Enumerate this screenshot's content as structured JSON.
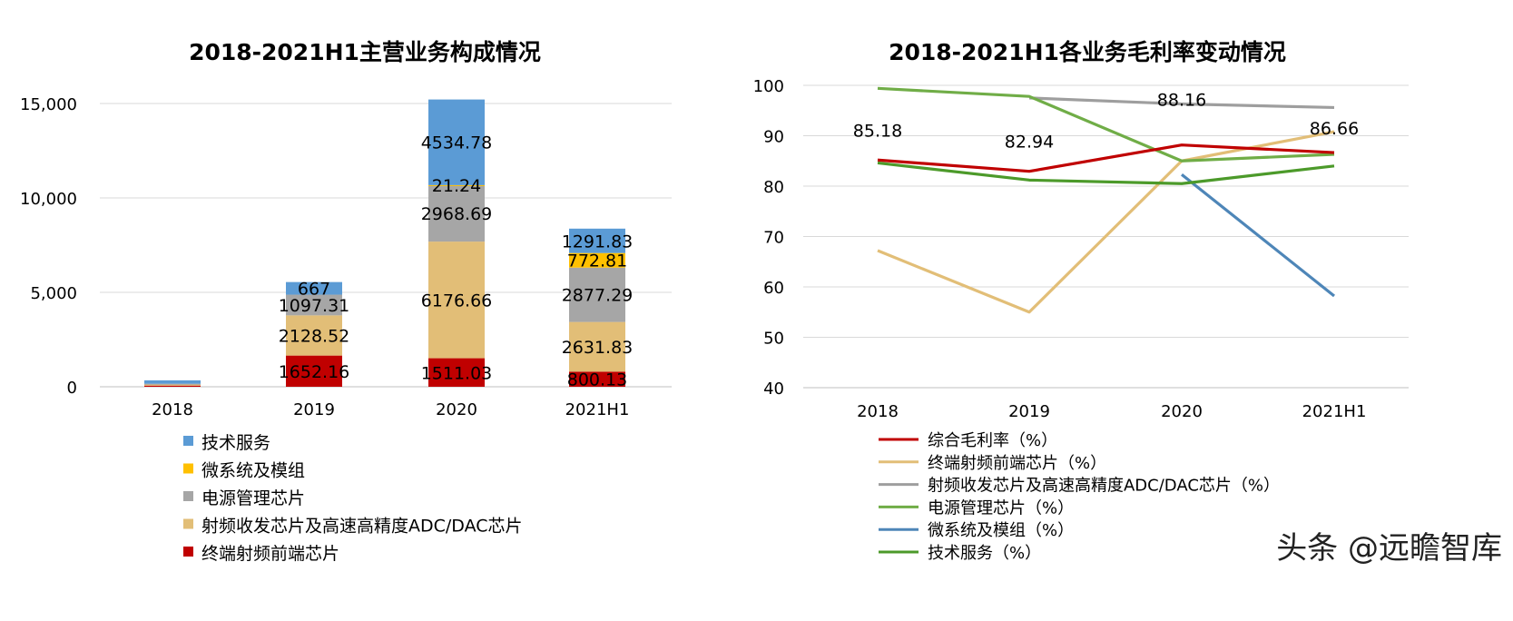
{
  "chart_data": [
    {
      "type": "stacked-bar",
      "title": "2018-2021H1主营业务构成情况",
      "categories": [
        "2018",
        "2019",
        "2020",
        "2021H1"
      ],
      "ylim": [
        0,
        15000
      ],
      "yticks": [
        0,
        5000,
        10000,
        15000
      ],
      "ytick_labels": [
        "0",
        "5,000",
        "10,000",
        "15,000"
      ],
      "grid": true,
      "legend_position": "bottom",
      "series": [
        {
          "name": "终端射频前端芯片",
          "color": "#c00000",
          "values": [
            60,
            1652.16,
            1511.03,
            800.13
          ],
          "labels": [
            null,
            "1652.16",
            "1511.03",
            "800.13"
          ]
        },
        {
          "name": "射频收发芯片及高速高精度ADC/DAC芯片",
          "color": "#e2be77",
          "values": [
            80,
            2128.52,
            6176.66,
            2631.83
          ],
          "labels": [
            null,
            "2128.52",
            "6176.66",
            "2631.83"
          ]
        },
        {
          "name": "电源管理芯片",
          "color": "#a6a6a6",
          "values": [
            20,
            1097.31,
            2968.69,
            2877.29
          ],
          "labels": [
            null,
            "1097.31",
            "2968.69",
            "2877.29"
          ]
        },
        {
          "name": "微系统及模组",
          "color": "#ffc000",
          "values": [
            0,
            0,
            21.24,
            772.81
          ],
          "labels": [
            null,
            null,
            "21.24",
            "772.81"
          ]
        },
        {
          "name": "技术服务",
          "color": "#5b9bd5",
          "values": [
            180,
            667,
            4534.78,
            1291.83
          ],
          "labels": [
            null,
            "667",
            "4534.78",
            "1291.83"
          ]
        }
      ],
      "legend_order": [
        "技术服务",
        "微系统及模组",
        "电源管理芯片",
        "射频收发芯片及高速高精度ADC/DAC芯片",
        "终端射频前端芯片"
      ]
    },
    {
      "type": "line",
      "title": "2018-2021H1各业务毛利率变动情况",
      "categories": [
        "2018",
        "2019",
        "2020",
        "2021H1"
      ],
      "ylim": [
        40,
        100
      ],
      "yticks": [
        40,
        50,
        60,
        70,
        80,
        90,
        100
      ],
      "grid": true,
      "legend_position": "bottom",
      "series": [
        {
          "name": "综合毛利率（%）",
          "color": "#c00000",
          "values": [
            85.18,
            82.94,
            88.16,
            86.66
          ],
          "labels": [
            "85.18",
            "82.94",
            "88.16",
            "86.66"
          ]
        },
        {
          "name": "终端射频前端芯片（%）",
          "color": "#e2be77",
          "values": [
            67.2,
            55.0,
            85.0,
            90.8
          ]
        },
        {
          "name": "射频收发芯片及高速高精度ADC/DAC芯片（%）",
          "color": "#9e9e9e",
          "values": [
            null,
            97.5,
            96.3,
            95.6
          ]
        },
        {
          "name": "电源管理芯片（%）",
          "color": "#70ad47",
          "values": [
            99.4,
            97.8,
            85.0,
            86.3
          ]
        },
        {
          "name": "微系统及模组（%）",
          "color": "#4e86b8",
          "values": [
            null,
            null,
            82.3,
            58.2
          ]
        },
        {
          "name": "技术服务（%）",
          "color": "#4c9a2a",
          "values": [
            84.6,
            81.2,
            80.5,
            84.0
          ]
        }
      ]
    }
  ],
  "watermark": "头条 @远瞻智库"
}
